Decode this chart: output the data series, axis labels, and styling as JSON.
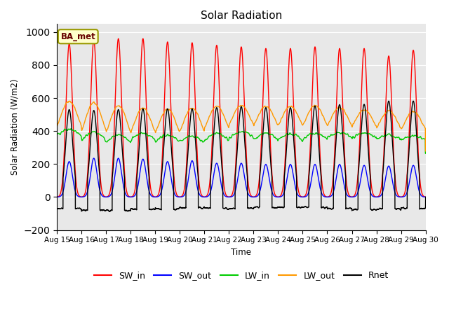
{
  "title": "Solar Radiation",
  "ylabel": "Solar Radiation (W/m2)",
  "xlabel": "Time",
  "ylim": [
    -200,
    1050
  ],
  "n_days": 15,
  "points_per_day": 288,
  "bg_color": "#e8e8e8",
  "site_label": "BA_met",
  "site_label_bg": "#ffffcc",
  "site_label_border": "#999900",
  "colors": {
    "SW_in": "#ff0000",
    "SW_out": "#0000ff",
    "LW_in": "#00cc00",
    "LW_out": "#ff9900",
    "Rnet": "#000000"
  },
  "x_tick_labels": [
    "Aug 15",
    "Aug 16",
    "Aug 17",
    "Aug 18",
    "Aug 19",
    "Aug 20",
    "Aug 21",
    "Aug 22",
    "Aug 23",
    "Aug 24",
    "Aug 25",
    "Aug 26",
    "Aug 27",
    "Aug 28",
    "Aug 29",
    "Aug 30"
  ],
  "SW_in_peak": [
    930,
    950,
    960,
    960,
    940,
    935,
    920,
    910,
    900,
    900,
    910,
    900,
    900,
    855,
    890
  ],
  "SW_out_peak": [
    215,
    235,
    235,
    230,
    215,
    220,
    205,
    205,
    198,
    198,
    198,
    198,
    192,
    188,
    192
  ],
  "LW_in_base": [
    375,
    340,
    330,
    345,
    335,
    330,
    340,
    360,
    345,
    345,
    350,
    360,
    358,
    348,
    343
  ],
  "LW_in_amp": [
    35,
    55,
    45,
    40,
    40,
    40,
    45,
    35,
    40,
    38,
    38,
    30,
    28,
    28,
    28
  ],
  "LW_out_base": [
    430,
    405,
    395,
    395,
    392,
    400,
    420,
    440,
    435,
    435,
    435,
    435,
    428,
    418,
    412
  ],
  "LW_out_amp": [
    150,
    165,
    158,
    143,
    140,
    140,
    130,
    115,
    115,
    115,
    120,
    108,
    100,
    105,
    105
  ],
  "Rnet_peak": [
    530,
    525,
    530,
    535,
    535,
    535,
    542,
    548,
    542,
    542,
    552,
    560,
    562,
    582,
    582
  ],
  "Rnet_night": [
    -70,
    -80,
    -80,
    -75,
    -72,
    -65,
    -68,
    -68,
    -62,
    -62,
    -62,
    -68,
    -75,
    -75,
    -68
  ]
}
